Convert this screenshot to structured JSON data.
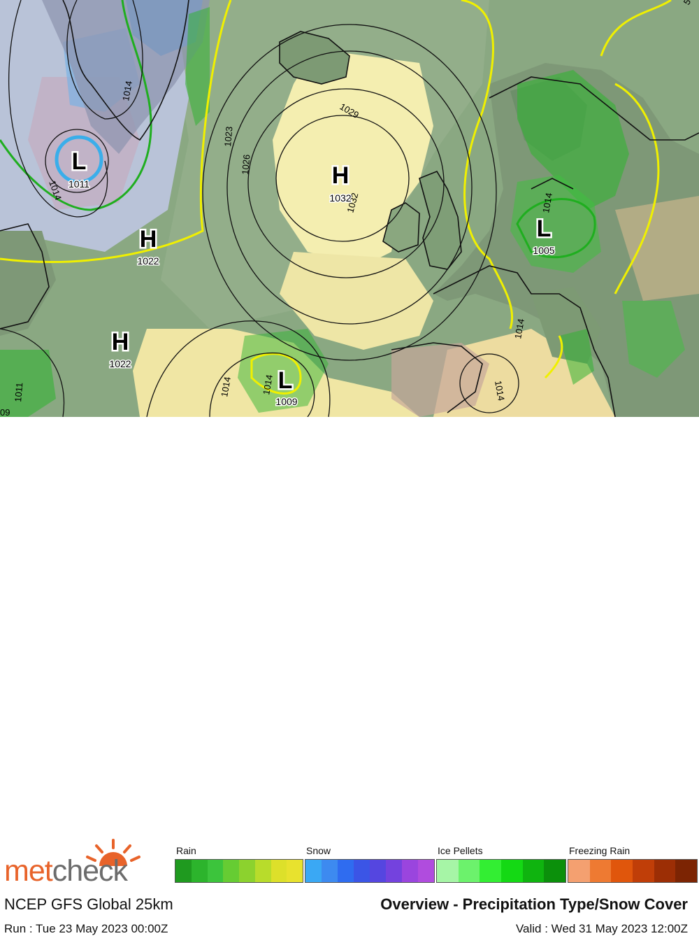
{
  "map": {
    "pressure_systems": [
      {
        "type": "L",
        "value": "1011"
      },
      {
        "type": "H",
        "value": "1022"
      },
      {
        "type": "H",
        "value": "1022"
      },
      {
        "type": "H",
        "value": "1032"
      },
      {
        "type": "L",
        "value": "1005"
      },
      {
        "type": "L",
        "value": "1009"
      }
    ],
    "isobar_labels": [
      "1014",
      "1014",
      "1023",
      "1026",
      "1029",
      "1032",
      "1014",
      "1014",
      "1014",
      "1014",
      "1011",
      "1014",
      "09",
      "5"
    ]
  },
  "footer": {
    "logo_part1": "met",
    "logo_part2": "check",
    "model": "NCEP GFS Global 25km",
    "run": "Run : Tue 23 May 2023 00:00Z",
    "title": "Overview - Precipitation Type/Snow Cover",
    "valid": "Valid : Wed 31 May 2023 12:00Z"
  },
  "legend": [
    {
      "label": "Rain",
      "colors": [
        "#1f9a1f",
        "#2cb42c",
        "#3cc43c",
        "#66cc33",
        "#8cd22e",
        "#b8dc2b",
        "#dde02a",
        "#e8e22e"
      ]
    },
    {
      "label": "Snow",
      "colors": [
        "#3aa8f4",
        "#3d8af0",
        "#2f6cf0",
        "#3b55e6",
        "#5546e0",
        "#7442de",
        "#9a45de",
        "#b04cde"
      ]
    },
    {
      "label": "Ice Pellets",
      "colors": [
        "#a6f5a6",
        "#6cf26c",
        "#33ee33",
        "#14d914",
        "#0fb40f",
        "#0b900b"
      ]
    },
    {
      "label": "Freezing Rain",
      "colors": [
        "#f4a070",
        "#ee7a32",
        "#e0560c",
        "#c03e08",
        "#9c2e05",
        "#7c2403"
      ]
    }
  ]
}
